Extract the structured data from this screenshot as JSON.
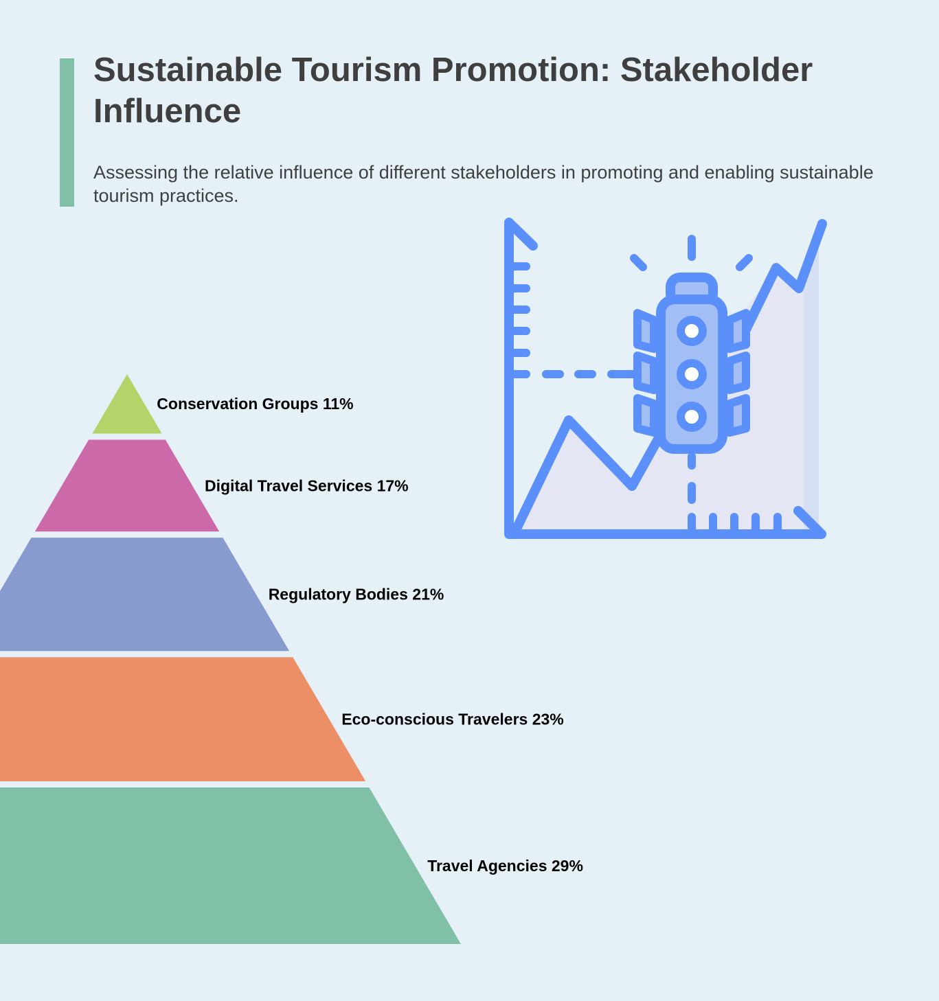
{
  "header": {
    "title": "Sustainable Tourism Promotion: Stakeholder Influence",
    "subtitle": "Assessing the relative influence of different stakeholders in promoting and enabling sustainable tourism practices."
  },
  "illustration": {
    "icon": "candlestick-growth-chart-icon",
    "colors": {
      "stroke": "#5b8ff9",
      "fill_light": "#a3bef5",
      "area": "#e4e6f3"
    }
  },
  "chart_data": {
    "type": "pyramid",
    "order": "top-to-bottom",
    "segments": [
      {
        "label": "Conservation Groups",
        "value": 11,
        "display": "Conservation Groups 11%",
        "color": "#b3d468"
      },
      {
        "label": "Digital Travel Services",
        "value": 17,
        "display": "Digital Travel Services 17%",
        "color": "#cc69a9"
      },
      {
        "label": "Regulatory Bodies",
        "value": 21,
        "display": "Regulatory Bodies 21%",
        "color": "#889bcf"
      },
      {
        "label": "Eco-conscious Travelers",
        "value": 23,
        "display": "Eco-conscious Travelers 23%",
        "color": "#ec8f66"
      },
      {
        "label": "Travel Agencies",
        "value": 29,
        "display": "Travel Agencies 29%",
        "color": "#80c0a7"
      }
    ]
  }
}
